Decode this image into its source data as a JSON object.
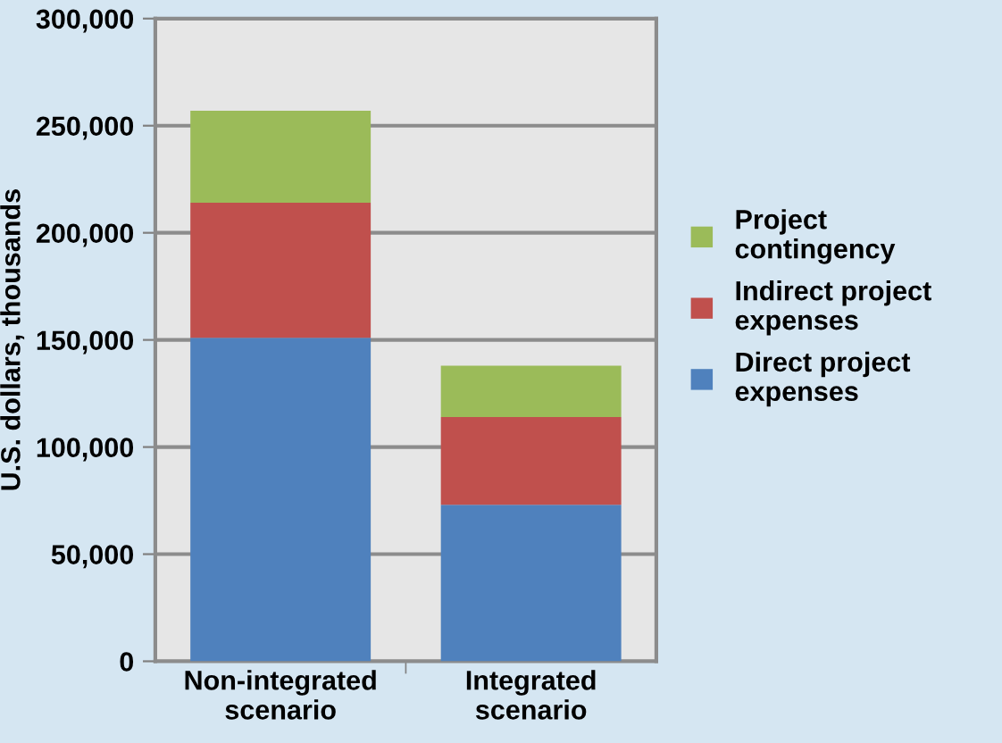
{
  "chart_data": {
    "type": "bar",
    "stacked": true,
    "ylabel": "U.S. dollars, thousands",
    "categories": [
      "Non-integrated\nscenario",
      "Integrated\nscenario"
    ],
    "series": [
      {
        "name": "Direct project\nexpenses",
        "color": "#4f81bd",
        "values": [
          151000,
          73000
        ]
      },
      {
        "name": "Indirect project\nexpenses",
        "color": "#c0504d",
        "values": [
          63000,
          41000
        ]
      },
      {
        "name": "Project\ncontingency",
        "color": "#9bbb59",
        "values": [
          43000,
          24000
        ]
      }
    ],
    "ylim": [
      0,
      300000
    ],
    "yticks": [
      {
        "value": 0,
        "label": "0"
      },
      {
        "value": 50000,
        "label": "50,000"
      },
      {
        "value": 100000,
        "label": "100,000"
      },
      {
        "value": 150000,
        "label": "150,000"
      },
      {
        "value": 200000,
        "label": "200,000"
      },
      {
        "value": 250000,
        "label": "250,000"
      },
      {
        "value": 300000,
        "label": "300,000"
      }
    ],
    "grid": "y",
    "legend": "right"
  }
}
